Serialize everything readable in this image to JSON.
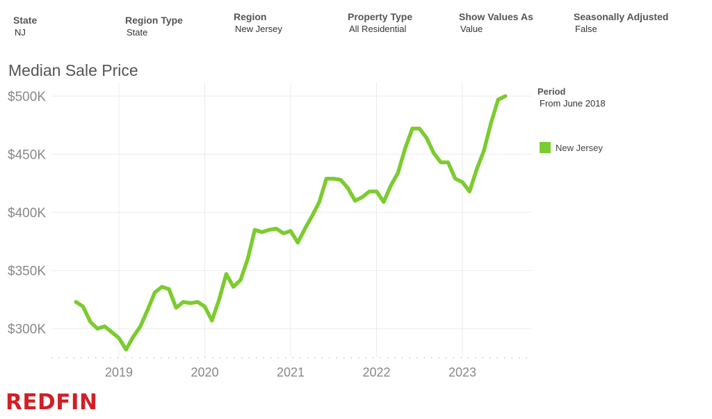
{
  "filters": [
    {
      "label": "State",
      "value": "NJ"
    },
    {
      "label": "Region Type",
      "value": "State"
    },
    {
      "label": "Region",
      "value": "New Jersey"
    },
    {
      "label": "Property Type",
      "value": "All Residential"
    },
    {
      "label": "Show Values As",
      "value": "Value"
    },
    {
      "label": "Seasonally Adjusted",
      "value": "False"
    }
  ],
  "legend": {
    "period_label": "Period",
    "period_value": "From June 2018",
    "series_name": "New Jersey"
  },
  "brand": "REDFIN",
  "colors": {
    "series": "#7ccb30",
    "grid": "#ebebeb",
    "axis_text": "#888888",
    "brand": "#d11f26"
  },
  "chart_data": {
    "type": "line",
    "title": "Median Sale Price",
    "xlabel": "",
    "ylabel": "",
    "x_ticks": [
      "2019",
      "2020",
      "2021",
      "2022",
      "2023"
    ],
    "y_ticks": [
      "$300K",
      "$350K",
      "$400K",
      "$450K",
      "$500K"
    ],
    "y_tick_values": [
      300000,
      350000,
      400000,
      450000,
      500000
    ],
    "ylim": [
      275000,
      512000
    ],
    "grid": true,
    "legend_position": "right",
    "series": [
      {
        "name": "New Jersey",
        "x": [
          "2018-07",
          "2018-08",
          "2018-09",
          "2018-10",
          "2018-11",
          "2018-12",
          "2019-01",
          "2019-02",
          "2019-03",
          "2019-04",
          "2019-05",
          "2019-06",
          "2019-07",
          "2019-08",
          "2019-09",
          "2019-10",
          "2019-11",
          "2019-12",
          "2020-01",
          "2020-02",
          "2020-03",
          "2020-04",
          "2020-05",
          "2020-06",
          "2020-07",
          "2020-08",
          "2020-09",
          "2020-10",
          "2020-11",
          "2020-12",
          "2021-01",
          "2021-02",
          "2021-03",
          "2021-04",
          "2021-05",
          "2021-06",
          "2021-07",
          "2021-08",
          "2021-09",
          "2021-10",
          "2021-11",
          "2021-12",
          "2022-01",
          "2022-02",
          "2022-03",
          "2022-04",
          "2022-05",
          "2022-06",
          "2022-07",
          "2022-08",
          "2022-09",
          "2022-10",
          "2022-11",
          "2022-12",
          "2023-01",
          "2023-02",
          "2023-03",
          "2023-04",
          "2023-05",
          "2023-06",
          "2023-07"
        ],
        "values": [
          323000,
          319000,
          306000,
          300000,
          302000,
          297000,
          292000,
          282000,
          293000,
          302000,
          316000,
          331000,
          336000,
          334000,
          318000,
          323000,
          322000,
          323000,
          319000,
          307000,
          325000,
          347000,
          336000,
          342000,
          360000,
          385000,
          383000,
          385000,
          386000,
          382000,
          384000,
          374000,
          386000,
          397000,
          409000,
          429000,
          429000,
          428000,
          421000,
          410000,
          413000,
          418000,
          418000,
          409000,
          423000,
          434000,
          455000,
          472000,
          472000,
          464000,
          451000,
          443000,
          443000,
          429000,
          426000,
          418000,
          437000,
          453000,
          477000,
          497000,
          500000
        ]
      }
    ]
  }
}
